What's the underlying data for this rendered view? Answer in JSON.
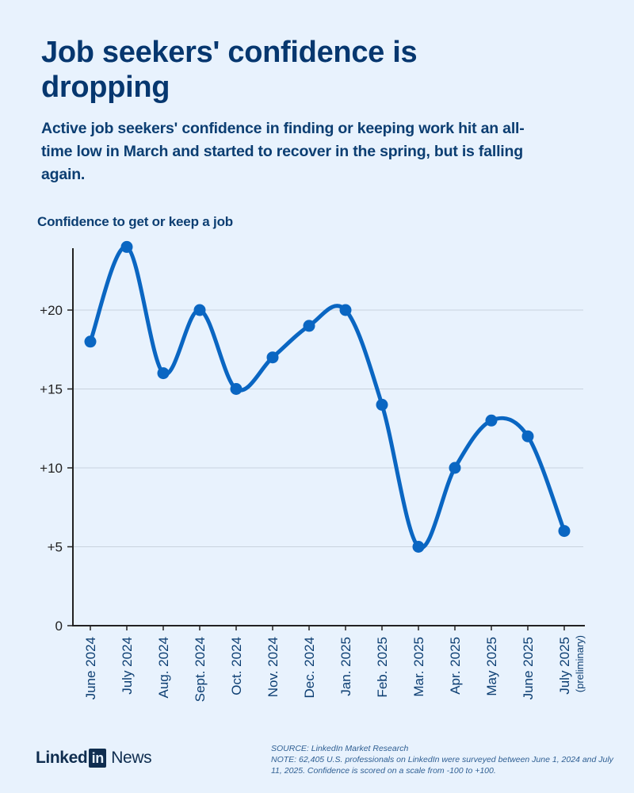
{
  "header": {
    "title": "Job seekers' confidence is dropping",
    "subtitle": "Active job seekers' confidence in finding or keeping work hit an all-time low in March and started to recover in the spring, but is falling again."
  },
  "chart_data": {
    "type": "line",
    "title": "Job seekers' confidence is dropping",
    "ylabel": "Confidence to get or keep a job",
    "xlabel": "",
    "categories": [
      "June 2024",
      "July 2024",
      "Aug. 2024",
      "Sept. 2024",
      "Oct. 2024",
      "Nov. 2024",
      "Dec. 2024",
      "Jan. 2025",
      "Feb. 2025",
      "Mar. 2025",
      "Apr. 2025",
      "May 2025",
      "June 2025",
      "July 2025"
    ],
    "category_notes": [
      "",
      "",
      "",
      "",
      "",
      "",
      "",
      "",
      "",
      "",
      "",
      "",
      "",
      "(preliminary)"
    ],
    "series": [
      {
        "name": "Confidence",
        "values": [
          18,
          24,
          16,
          20,
          15,
          17,
          19,
          20,
          14,
          5,
          10,
          13,
          12,
          6
        ]
      }
    ],
    "yticks": [
      0,
      5,
      10,
      15,
      20
    ],
    "ytick_labels": [
      "0",
      "+5",
      "+10",
      "+15",
      "+20"
    ],
    "ylim": [
      0,
      24
    ],
    "grid": true,
    "smooth": true,
    "line_color": "#0a66c2",
    "grid_color": "#c9d3de",
    "axis_color": "#222222"
  },
  "footer": {
    "logo_text_left": "Linked",
    "logo_text_box": "in",
    "logo_text_right": "News",
    "source": "SOURCE: LinkedIn Market Research",
    "note": "NOTE: 62,405 U.S. professionals on LinkedIn were surveyed between June 1, 2024 and July 11, 2025. Confidence is scored on a scale from -100 to +100."
  }
}
